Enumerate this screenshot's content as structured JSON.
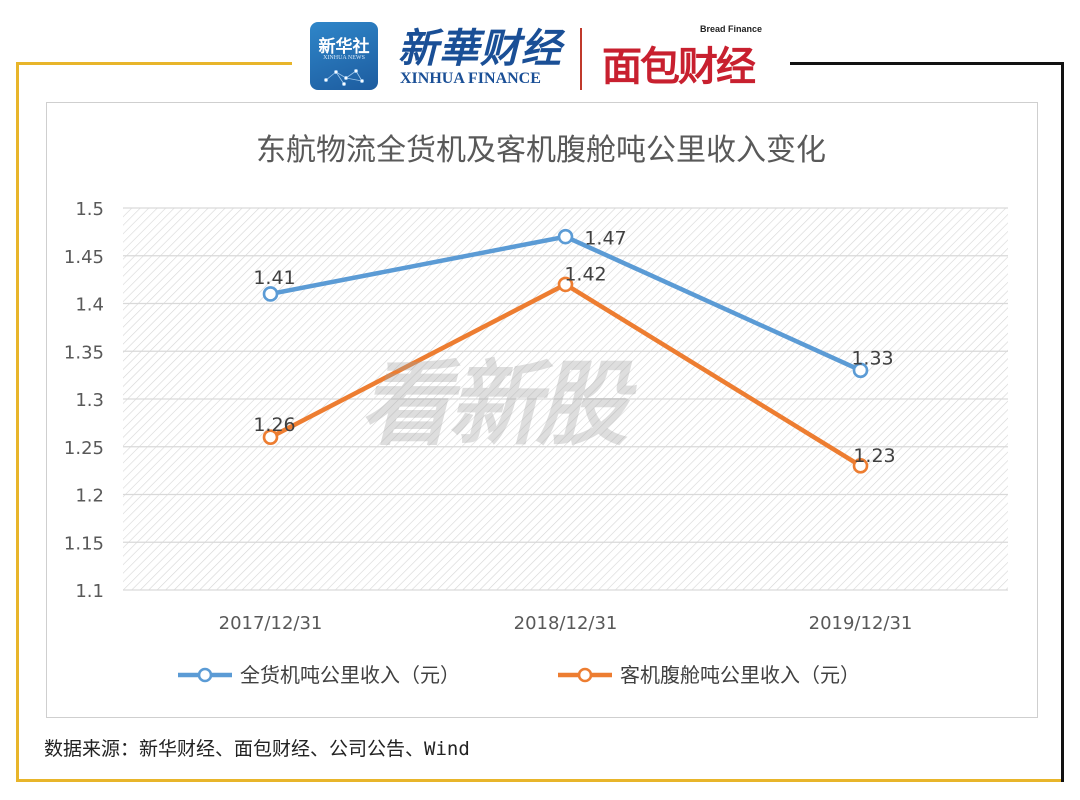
{
  "header": {
    "xinhua_badge": "新华社",
    "xinhua_badge_en": "XINHUA NEWS",
    "xinhua_finance_cn": "新華财经",
    "xinhua_finance_en": "XINHUA FINANCE",
    "bread_finance_en": "Bread Finance",
    "bread_finance_cn": "面包财经"
  },
  "watermark": "看新股",
  "source": "数据来源：新华财经、面包财经、公司公告、Wind",
  "chart_data": {
    "type": "line",
    "title": "东航物流全货机及客机腹舱吨公里收入变化",
    "categories": [
      "2017/12/31",
      "2018/12/31",
      "2019/12/31"
    ],
    "series": [
      {
        "name": "全货机吨公里收入（元）",
        "values": [
          1.41,
          1.47,
          1.33
        ],
        "color": "#5b9bd5"
      },
      {
        "name": "客机腹舱吨公里收入（元）",
        "values": [
          1.26,
          1.42,
          1.23
        ],
        "color": "#ed7d31"
      }
    ],
    "ylim": [
      1.1,
      1.5
    ],
    "yticks": [
      "1.1",
      "1.15",
      "1.2",
      "1.25",
      "1.3",
      "1.35",
      "1.4",
      "1.45",
      "1.5"
    ],
    "grid": true,
    "legend": "bottom",
    "data_labels": true
  }
}
